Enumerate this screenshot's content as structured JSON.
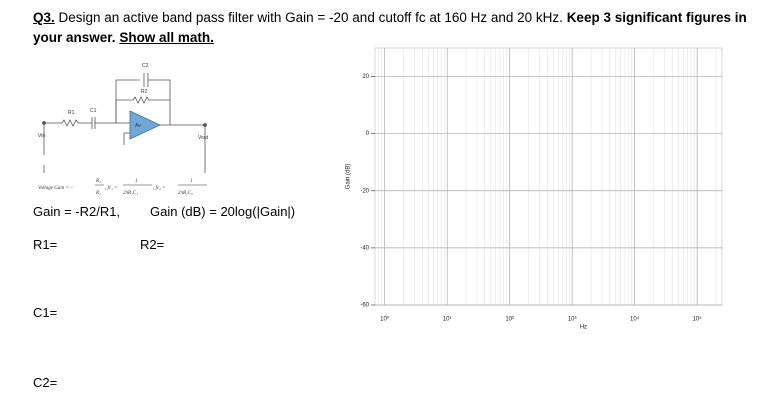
{
  "question": {
    "number": "Q3.",
    "text": " Design an active band pass filter with Gain = -20 and cutoff fc at 160 Hz and 20 kHz. ",
    "emphasis": "Keep 3 significant figures in your answer.",
    "instruction": "Show all math."
  },
  "circuit": {
    "labels": [
      "C2",
      "R2",
      "R1",
      "C1",
      "Av",
      "Vin",
      "Vout"
    ]
  },
  "formula": [
    "Voltage Gain = −",
    "R₂",
    "R₁",
    ", fc₁ =",
    "1",
    "2πR₁C₁",
    ", fc₂ =",
    "1",
    "2πR₂C₂"
  ],
  "gain_text": "Gain = -R2/R1,",
  "gain_db_text": "Gain (dB) = 20log(|Gain|)",
  "answers": {
    "r1": "R1=",
    "r2": "R2=",
    "c1": "C1=",
    "c2": "C2="
  },
  "graph": {
    "ylabel": "Gain (dB)",
    "xlabel": "Hz",
    "xscale": "log",
    "grid": true,
    "xlim": [
      0.7,
      250000
    ],
    "ylim": [
      -60,
      30
    ],
    "xticks": [
      {
        "value": 1,
        "label": "10⁰"
      },
      {
        "value": 10,
        "label": "10¹"
      },
      {
        "value": 100,
        "label": "10²"
      },
      {
        "value": 1000,
        "label": "10³"
      },
      {
        "value": 10000,
        "label": "10⁴"
      },
      {
        "value": 100000,
        "label": "10⁵"
      }
    ],
    "yticks": [
      20,
      0,
      -20,
      -40,
      -60
    ]
  }
}
